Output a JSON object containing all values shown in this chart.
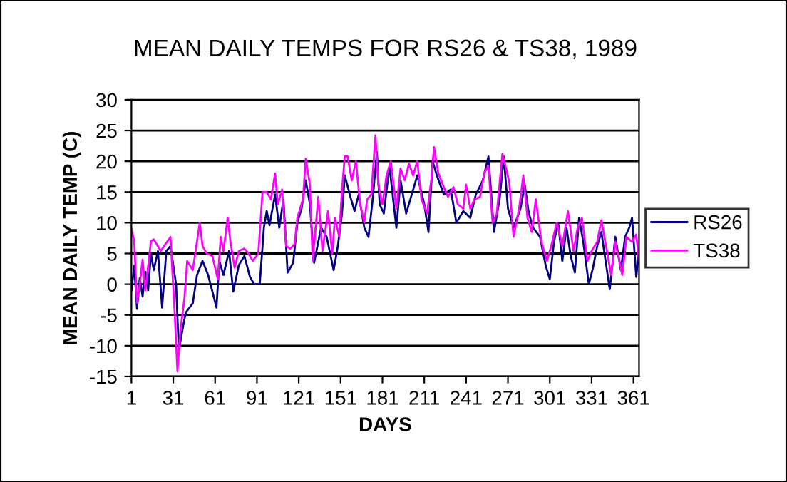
{
  "chart_data": {
    "type": "line",
    "title": "MEAN DAILY TEMPS FOR RS26 & TS38, 1989",
    "xlabel": "DAYS",
    "ylabel": "MEAN DAILY TEMP (C)",
    "xlim": [
      1,
      365
    ],
    "xticks": [
      1,
      31,
      61,
      91,
      121,
      151,
      181,
      211,
      241,
      271,
      301,
      331,
      361
    ],
    "ylim": [
      -15,
      30
    ],
    "yticks": [
      -15,
      -10,
      -5,
      0,
      5,
      10,
      15,
      20,
      25,
      30
    ],
    "grid": "y",
    "legend": "right",
    "marker": "none",
    "line_style": "solid",
    "series": [
      {
        "name": "RS26",
        "color": "#000080",
        "x": [
          1,
          3,
          5,
          7,
          9,
          11,
          13,
          15,
          17,
          20,
          23,
          26,
          29,
          33,
          35,
          38,
          40,
          45,
          48,
          52,
          56,
          62,
          64,
          67,
          71,
          74,
          78,
          82,
          86,
          89,
          93,
          96,
          98,
          100,
          104,
          107,
          110,
          113,
          117,
          120,
          123,
          126,
          129,
          132,
          137,
          141,
          146,
          149,
          152,
          154,
          158,
          161,
          164,
          168,
          171,
          174,
          177,
          179,
          182,
          186,
          191,
          194,
          198,
          201,
          206,
          211,
          214,
          217,
          220,
          225,
          230,
          234,
          239,
          244,
          248,
          253,
          257,
          261,
          265,
          268,
          271,
          275,
          280,
          283,
          286,
          289,
          294,
          298,
          301,
          304,
          307,
          310,
          313,
          316,
          319,
          322,
          325,
          329,
          332,
          335,
          338,
          341,
          344,
          348,
          352,
          355,
          358,
          360,
          363,
          365
        ],
        "values": [
          -1,
          3,
          -4,
          1,
          -2,
          2,
          -1,
          5,
          2.3,
          5.4,
          -3.8,
          5.4,
          6.2,
          0,
          -10.8,
          -6.9,
          -4.6,
          -3.1,
          1.5,
          3.8,
          1.5,
          -3.8,
          3.8,
          1.5,
          5.4,
          -1.2,
          3.1,
          4.6,
          1.2,
          0,
          0,
          9.2,
          11.9,
          9.6,
          14.6,
          9.2,
          13.8,
          1.9,
          3.5,
          10,
          12.3,
          16.9,
          13,
          3.5,
          9.2,
          7.7,
          2.3,
          6.2,
          11.5,
          17.7,
          14.2,
          11.9,
          14.6,
          9.2,
          7.7,
          13.8,
          21.5,
          13,
          11.5,
          19.2,
          9.2,
          16.9,
          11.5,
          13.8,
          17.7,
          13,
          8.5,
          20,
          17.7,
          14.6,
          15.4,
          10,
          11.9,
          10.8,
          14.6,
          16.9,
          20.8,
          8.5,
          13.8,
          20.8,
          12.3,
          9.2,
          12.3,
          16.2,
          11.5,
          9.2,
          7.7,
          3.1,
          0.8,
          6.9,
          10,
          3.8,
          9.2,
          4.6,
          1.9,
          10.8,
          6.9,
          0,
          2.7,
          6.2,
          8.5,
          3.8,
          -0.8,
          7.7,
          2.3,
          7.7,
          9.2,
          10.8,
          1.2,
          5.4
        ]
      },
      {
        "name": "TS38",
        "color": "#ff00ff",
        "x": [
          1,
          3,
          5,
          7,
          9,
          11,
          13,
          15,
          17,
          22,
          29,
          32,
          34,
          36,
          39,
          41,
          45,
          50,
          52,
          55,
          59,
          63,
          65,
          67,
          70,
          72,
          75,
          78,
          82,
          85,
          88,
          92,
          95,
          98,
          101,
          104,
          106,
          109,
          112,
          115,
          118,
          120,
          124,
          126,
          129,
          131,
          135,
          138,
          142,
          145,
          147,
          150,
          152,
          154,
          156,
          159,
          162,
          165,
          168,
          170,
          173,
          176,
          178,
          181,
          184,
          187,
          191,
          194,
          197,
          200,
          203,
          206,
          209,
          213,
          216,
          218,
          221,
          225,
          228,
          232,
          235,
          239,
          241,
          244,
          247,
          251,
          254,
          257,
          260,
          263,
          267,
          270,
          272,
          275,
          279,
          282,
          285,
          288,
          291,
          295,
          299,
          302,
          306,
          310,
          314,
          318,
          321,
          324,
          328,
          331,
          335,
          338,
          342,
          345,
          348,
          353,
          356,
          360,
          363,
          365
        ],
        "values": [
          9,
          7,
          -3,
          0,
          4,
          -1,
          3,
          7,
          7.3,
          5.4,
          7.7,
          -4.6,
          -14.2,
          -7.7,
          -2.3,
          3.8,
          2.3,
          10,
          6.2,
          5,
          4.6,
          0.8,
          7.7,
          5.4,
          10.8,
          6.9,
          2.7,
          5.4,
          5.8,
          5,
          3.8,
          5,
          15,
          15,
          13.8,
          18,
          13,
          15.4,
          6.2,
          5.8,
          6.5,
          10.8,
          13.8,
          20.4,
          16.2,
          3.8,
          14.2,
          5.4,
          11.9,
          5,
          10.8,
          7.7,
          15.4,
          20.8,
          20.8,
          16.9,
          20,
          13,
          10,
          13.8,
          14.6,
          24.2,
          16.2,
          13,
          17.7,
          20,
          12.3,
          18.8,
          16.9,
          19.6,
          17.7,
          20,
          13.8,
          11.5,
          16.9,
          22.3,
          18.1,
          15.8,
          14.2,
          15.8,
          13,
          12.3,
          16.2,
          12.3,
          13.8,
          14.2,
          18.1,
          19.2,
          10,
          11.5,
          21.2,
          18.5,
          16.5,
          7.7,
          12.3,
          17.7,
          10.8,
          8.5,
          13.8,
          6.9,
          3.8,
          6.2,
          10,
          6.2,
          11.9,
          5.4,
          9.2,
          10.8,
          3.8,
          5.4,
          6.9,
          10.4,
          5.4,
          1.5,
          6.9,
          1.5,
          7.7,
          6.9,
          8.1,
          3.8
        ]
      }
    ]
  }
}
